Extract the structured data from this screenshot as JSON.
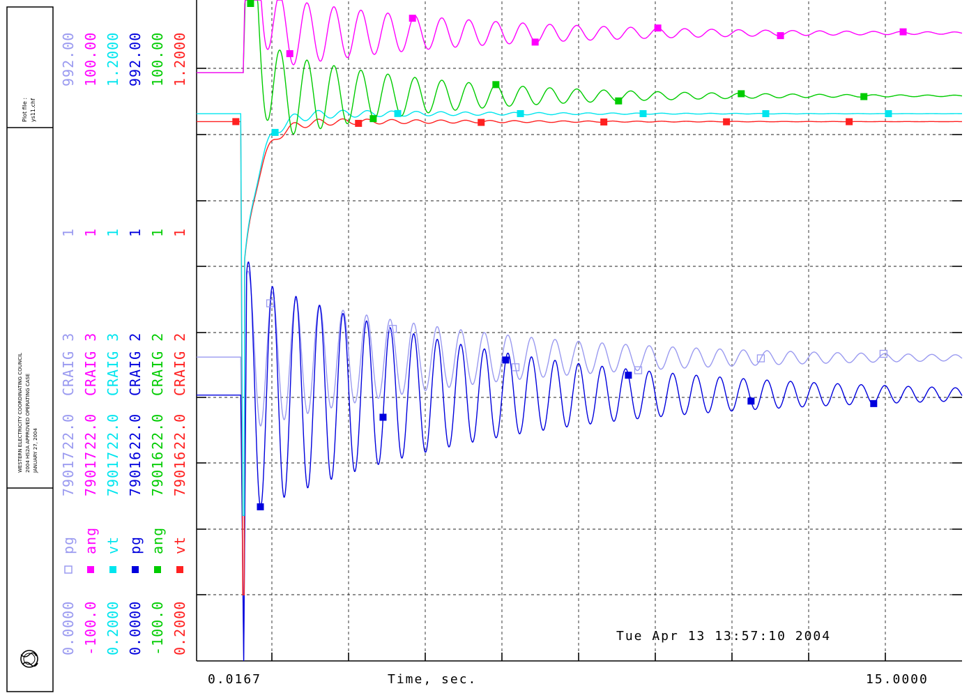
{
  "title_block": {
    "file_label": "Plot file :",
    "file_name": "ys11.chf",
    "org_line1": "WESTERN ELECTRICITY COORDINATING COUNCIL",
    "org_line2": "2004 HS2A APPROVED OPERATING CASE",
    "org_line3": "JANUARY 27, 2004",
    "logo": "ge-monogram-icon"
  },
  "chart_data": {
    "type": "line",
    "xlabel": "Time, sec.",
    "xlim": [
      0.0167,
      15.0
    ],
    "x_tick_labels": [
      "0.0167",
      "15.0000"
    ],
    "timestamp": "Tue Apr 13 13:57:10 2004",
    "grid": true,
    "series": [
      {
        "name": "pg",
        "symbol": "open-square",
        "color": "#9a9af0",
        "min": "0.0000",
        "max": "992.00",
        "bus": "79017",
        "kv": "22.0",
        "bus_name": "CRAIG 3",
        "id": "1"
      },
      {
        "name": "ang",
        "symbol": "filled-square",
        "color": "#ff00ff",
        "min": "-100.0",
        "max": "100.00",
        "bus": "79017",
        "kv": "22.0",
        "bus_name": "CRAIG 3",
        "id": "1"
      },
      {
        "name": "vt",
        "symbol": "filled-square",
        "color": "#00e5ee",
        "min": "0.2000",
        "max": "1.2000",
        "bus": "79017",
        "kv": "22.0",
        "bus_name": "CRAIG 3",
        "id": "1"
      },
      {
        "name": "pg",
        "symbol": "filled-square",
        "color": "#0000dd",
        "min": "0.0000",
        "max": "992.00",
        "bus": "79016",
        "kv": "22.0",
        "bus_name": "CRAIG 2",
        "id": "1"
      },
      {
        "name": "ang",
        "symbol": "filled-square",
        "color": "#00cc00",
        "min": "-100.0",
        "max": "100.00",
        "bus": "79016",
        "kv": "22.0",
        "bus_name": "CRAIG 2",
        "id": "1"
      },
      {
        "name": "vt",
        "symbol": "filled-square",
        "color": "#ff2020",
        "min": "0.2000",
        "max": "1.2000",
        "bus": "79016",
        "kv": "22.0",
        "bus_name": "CRAIG 2",
        "id": "1"
      }
    ],
    "traces": {
      "pg3": {
        "initial": 456,
        "final": 455,
        "fault_min": 0,
        "peak": 623,
        "osc_amp": 110,
        "decay": 0.22,
        "period": 0.48
      },
      "ang3": {
        "initial": 78,
        "final": 90,
        "peak": 167,
        "osc_amp": 12,
        "decay": 0.25,
        "period": 0.55
      },
      "vt3": {
        "initial": 1.028,
        "final": 1.028,
        "dip": 0.42,
        "osc_amp": 0.01
      },
      "pg2": {
        "initial": 399,
        "final": 400,
        "fault_min": 0,
        "peak": 570,
        "osc_amp": 180,
        "decay": 0.2,
        "period": 0.48
      },
      "ang2": {
        "initial": 78,
        "final": 71,
        "peak": 148,
        "osc_amp": 15,
        "decay": 0.3,
        "period": 0.55
      },
      "vt2": {
        "initial": 1.016,
        "final": 1.016,
        "dip": 0.3,
        "osc_amp": 0.008
      }
    }
  }
}
